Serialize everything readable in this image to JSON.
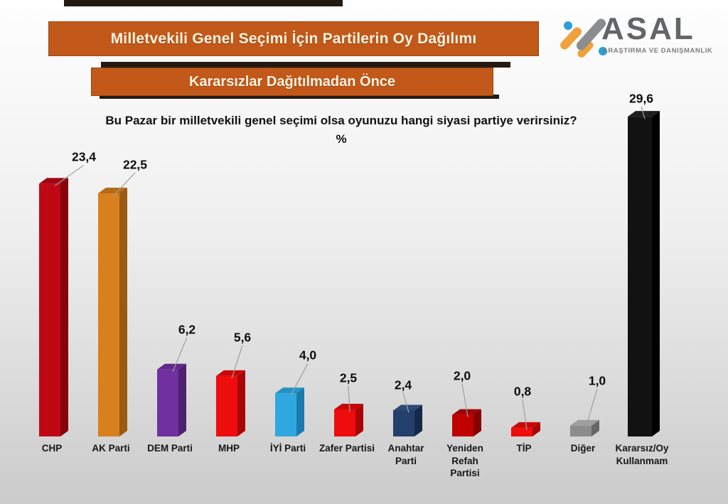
{
  "header": {
    "title_banner": "Milletvekili Genel Seçimi İçin Partilerin Oy Dağılımı",
    "subtitle_banner": "Kararsızlar Dağıtılmadan Önce",
    "logo": {
      "name": "ASAL",
      "tagline": "ARAŞTIRMA VE DANIŞMANLIK",
      "colors": {
        "orange": "#f0a138",
        "gray": "#8b8d8f",
        "blue": "#2b9fd8",
        "text": "#636567"
      }
    }
  },
  "question": {
    "line1": "Bu Pazar bir milletvekili genel seçimi olsa oyunuzu hangi siyasi partiye verirsiniz?",
    "line2": "%"
  },
  "banner_style": {
    "background": "#c2591a",
    "border": "#96450f",
    "text_color": "#fbf3df"
  },
  "chart_data": {
    "type": "bar",
    "style": "3d-columns, data labels with leader lines, no axes, no gridlines",
    "unit": "%",
    "categories": [
      "CHP",
      "AK Parti",
      "DEM Parti",
      "MHP",
      "İYİ Parti",
      "Zafer Partisi",
      "Anahtar Parti",
      "Yeniden Refah Partisi",
      "TİP",
      "Diğer",
      "Kararsız/Oy Kullanmam"
    ],
    "category_lines": [
      [
        "CHP"
      ],
      [
        "AK Parti"
      ],
      [
        "DEM Parti"
      ],
      [
        "MHP"
      ],
      [
        "İYİ Parti"
      ],
      [
        "Zafer Partisi"
      ],
      [
        "Anahtar",
        "Parti"
      ],
      [
        "Yeniden",
        "Refah",
        "Partisi"
      ],
      [
        "TİP"
      ],
      [
        "Diğer"
      ],
      [
        "Kararsız/Oy",
        "Kullanmam"
      ]
    ],
    "values": [
      23.4,
      22.5,
      6.2,
      5.6,
      4.0,
      2.5,
      2.4,
      2.0,
      0.8,
      1.0,
      29.6
    ],
    "value_labels": [
      "23,4",
      "22,5",
      "6,2",
      "5,6",
      "4,0",
      "2,5",
      "2,4",
      "2,0",
      "0,8",
      "1,0",
      "29,6"
    ],
    "colors": [
      {
        "front": "#c00814",
        "side": "#85050c",
        "top": "#a0060f"
      },
      {
        "front": "#d9801e",
        "side": "#9a5a11",
        "top": "#b56a16"
      },
      {
        "front": "#7030a0",
        "side": "#4e2170",
        "top": "#5f2888"
      },
      {
        "front": "#ee0c0c",
        "side": "#a80606",
        "top": "#c80808"
      },
      {
        "front": "#2fa8e0",
        "side": "#1b7aab",
        "top": "#2492c4"
      },
      {
        "front": "#ee0c0c",
        "side": "#a80606",
        "top": "#c80808"
      },
      {
        "front": "#243f6b",
        "side": "#16294a",
        "top": "#2c4a78"
      },
      {
        "front": "#c00000",
        "side": "#850000",
        "top": "#a00000"
      },
      {
        "front": "#ee0c0c",
        "side": "#a80606",
        "top": "#c80808"
      },
      {
        "front": "#8c8c8c",
        "side": "#666666",
        "top": "#9e9e9e"
      },
      {
        "front": "#121212",
        "side": "#000000",
        "top": "#1e1e1e"
      }
    ],
    "ylim": [
      0,
      30
    ],
    "gridlines": false,
    "legend": false
  }
}
